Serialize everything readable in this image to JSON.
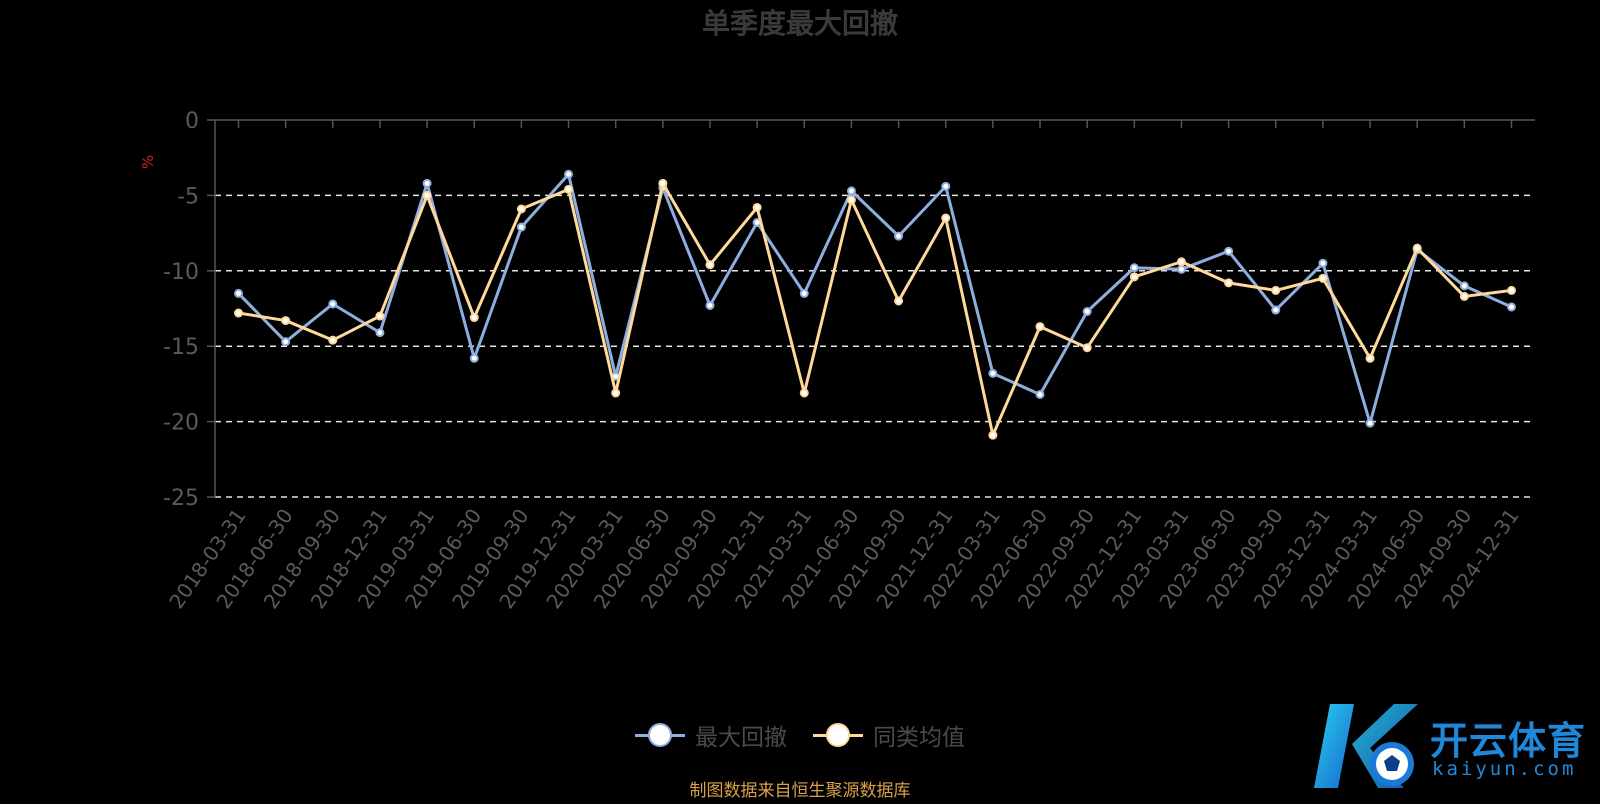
{
  "chart_data": {
    "type": "line",
    "title": "单季度最大回撤",
    "ylabel": "%",
    "ylim": [
      -25,
      0
    ],
    "yticks": [
      0,
      -5,
      -10,
      -15,
      -20,
      -25
    ],
    "grid": "dashed horizontal",
    "legend_position": "bottom-center",
    "categories": [
      "2018-03-31",
      "2018-06-30",
      "2018-09-30",
      "2018-12-31",
      "2019-03-31",
      "2019-06-30",
      "2019-09-30",
      "2019-12-31",
      "2020-03-31",
      "2020-06-30",
      "2020-09-30",
      "2020-12-31",
      "2021-03-31",
      "2021-06-30",
      "2021-09-30",
      "2021-12-31",
      "2022-03-31",
      "2022-06-30",
      "2022-09-30",
      "2022-12-31",
      "2023-03-31",
      "2023-06-30",
      "2023-09-30",
      "2023-12-31",
      "2024-03-31",
      "2024-06-30",
      "2024-09-30",
      "2024-12-31"
    ],
    "series": [
      {
        "name": "最大回撤",
        "color": "#8eaee0",
        "values": [
          -11.5,
          -14.7,
          -12.2,
          -14.1,
          -4.2,
          -15.8,
          -7.1,
          -3.6,
          -17.0,
          -4.5,
          -12.3,
          -6.8,
          -11.5,
          -4.7,
          -7.7,
          -4.4,
          -16.8,
          -18.2,
          -12.7,
          -9.8,
          -9.9,
          -8.7,
          -12.6,
          -9.5,
          -20.1,
          -8.6,
          -11.0,
          -12.4
        ]
      },
      {
        "name": "同类均值",
        "color": "#ffd99a",
        "values": [
          -12.8,
          -13.3,
          -14.6,
          -13.0,
          -5.0,
          -13.1,
          -5.9,
          -4.6,
          -18.1,
          -4.2,
          -9.6,
          -5.8,
          -18.1,
          -5.3,
          -12.0,
          -6.5,
          -20.9,
          -13.7,
          -15.1,
          -10.4,
          -9.4,
          -10.8,
          -11.3,
          -10.5,
          -15.8,
          -8.5,
          -11.7,
          -11.3
        ]
      }
    ]
  },
  "source_note": "制图数据来自恒生聚源数据库",
  "logo": {
    "text": "开云体育",
    "sub": "kaiyun.com",
    "mark": "K"
  }
}
